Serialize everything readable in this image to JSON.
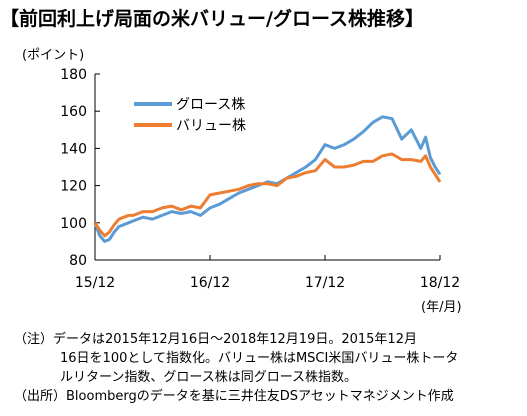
{
  "title": "【前回利上げ局面の米バリュー/グロース株推移】",
  "y_unit": "(ポイント)",
  "x_unit": "(年/月)",
  "notes": {
    "line1": "（注）データは2015年12月16日～2018年12月19日。2015年12月",
    "line2": "16日を100として指数化。バリュー株はMSCI米国バリュー株トータ",
    "line3": "ルリターン指数、グロース株は同グロース株指数。",
    "line4": "（出所）Bloombergのデータを基に三井住友DSアセットマネジメント作成"
  },
  "colors": {
    "growth": "#5b9bd5",
    "value": "#ed7d31",
    "axis": "#000000"
  },
  "chart_data": {
    "type": "line",
    "title": "【前回利上げ局面の米バリュー/グロース株推移】",
    "ylabel": "(ポイント)",
    "xlabel": "(年/月)",
    "ylim": [
      80,
      180
    ],
    "yticks": [
      80,
      100,
      120,
      140,
      160,
      180
    ],
    "xlim": [
      0,
      36
    ],
    "xticks": [
      0,
      12,
      24,
      36
    ],
    "xtick_labels": [
      "15/12",
      "16/12",
      "17/12",
      "18/12"
    ],
    "grid": false,
    "legend_position": "top-left",
    "series": [
      {
        "name": "グロース株",
        "color": "#5b9bd5",
        "x": [
          0,
          0.5,
          1,
          1.5,
          2,
          2.5,
          3,
          3.5,
          4,
          5,
          6,
          7,
          8,
          9,
          10,
          11,
          12,
          13,
          14,
          15,
          16,
          17,
          18,
          19,
          20,
          21,
          22,
          23,
          24,
          25,
          26,
          27,
          28,
          29,
          30,
          31,
          32,
          33,
          34,
          34.5,
          35,
          35.5,
          36
        ],
        "values": [
          100,
          93,
          90,
          91,
          95,
          98,
          99,
          100,
          101,
          103,
          102,
          104,
          106,
          105,
          106,
          104,
          108,
          110,
          113,
          116,
          118,
          120,
          122,
          121,
          124,
          127,
          130,
          134,
          142,
          140,
          142,
          145,
          149,
          154,
          157,
          156,
          145,
          150,
          140,
          146,
          135,
          130,
          126
        ]
      },
      {
        "name": "バリュー株",
        "color": "#ed7d31",
        "x": [
          0,
          0.5,
          1,
          1.5,
          2,
          2.5,
          3,
          3.5,
          4,
          5,
          6,
          7,
          8,
          9,
          10,
          11,
          12,
          13,
          14,
          15,
          16,
          17,
          18,
          19,
          20,
          21,
          22,
          23,
          24,
          25,
          26,
          27,
          28,
          29,
          30,
          31,
          32,
          33,
          34,
          34.5,
          35,
          35.5,
          36
        ],
        "values": [
          100,
          96,
          93,
          95,
          99,
          102,
          103,
          104,
          104,
          106,
          106,
          108,
          109,
          107,
          109,
          108,
          115,
          116,
          117,
          118,
          120,
          121,
          121,
          120,
          124,
          125,
          127,
          128,
          134,
          130,
          130,
          131,
          133,
          133,
          136,
          137,
          134,
          134,
          133,
          136,
          130,
          126,
          122
        ]
      }
    ]
  }
}
